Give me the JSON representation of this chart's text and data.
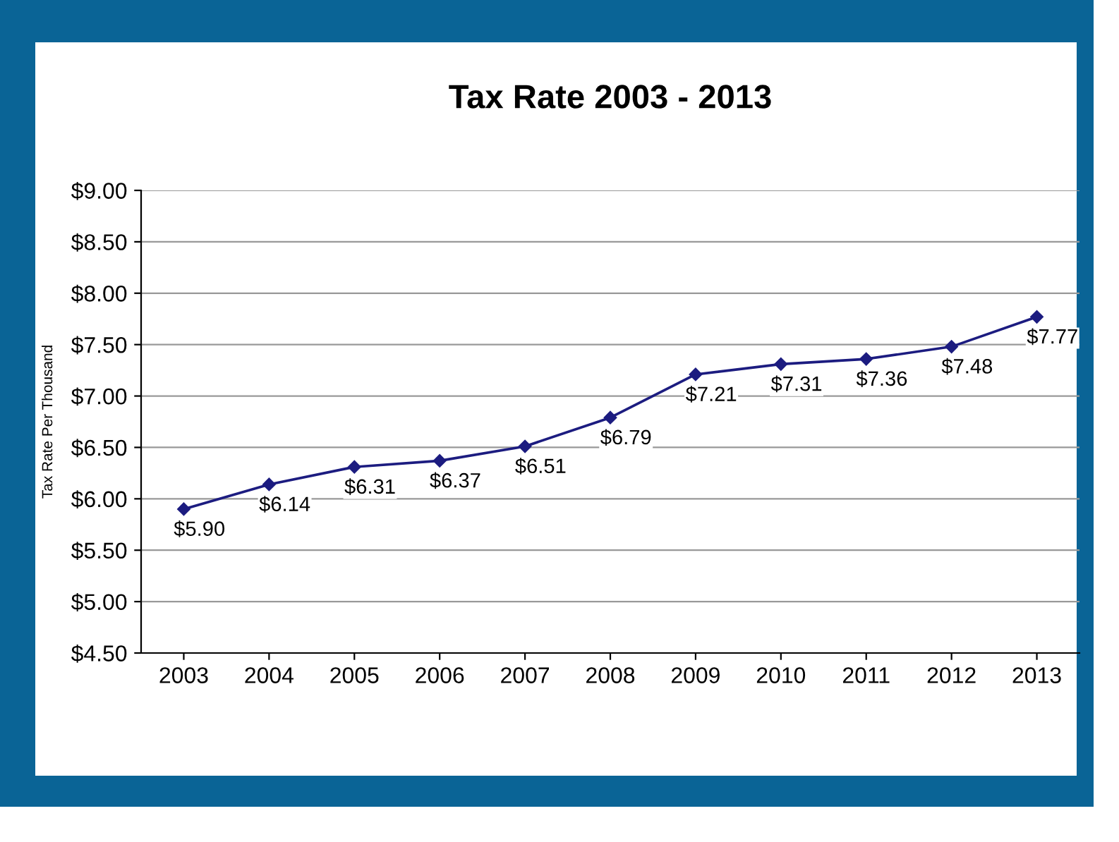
{
  "chart_data": {
    "type": "line",
    "title": "Tax Rate 2003 - 2013",
    "ylabel": "Tax Rate Per Thousand",
    "categories": [
      "2003",
      "2004",
      "2005",
      "2006",
      "2007",
      "2008",
      "2009",
      "2010",
      "2011",
      "2012",
      "2013"
    ],
    "series": [
      {
        "color": "#1c1c80",
        "values": [
          5.9,
          6.14,
          6.31,
          6.37,
          6.51,
          6.79,
          7.21,
          7.31,
          7.36,
          7.48,
          7.77
        ],
        "value_labels": [
          "$5.90",
          "$6.14",
          "$6.31",
          "$6.37",
          "$6.51",
          "$6.79",
          "$7.21",
          "$7.31",
          "$7.36",
          "$7.48",
          "$7.77"
        ]
      }
    ],
    "ylim": [
      4.5,
      9.0
    ],
    "yticks": [
      {
        "value": 4.5,
        "label": "$4.50"
      },
      {
        "value": 5.0,
        "label": "$5.00"
      },
      {
        "value": 5.5,
        "label": "$5.50"
      },
      {
        "value": 6.0,
        "label": "$6.00"
      },
      {
        "value": 6.5,
        "label": "$6.50"
      },
      {
        "value": 7.0,
        "label": "$7.00"
      },
      {
        "value": 7.5,
        "label": "$7.50"
      },
      {
        "value": 8.0,
        "label": "$8.00"
      },
      {
        "value": 8.5,
        "label": "$8.50"
      },
      {
        "value": 9.0,
        "label": "$9.00"
      }
    ],
    "grid": "y",
    "marker": "diamond",
    "line_style": "solid",
    "legend": false
  }
}
